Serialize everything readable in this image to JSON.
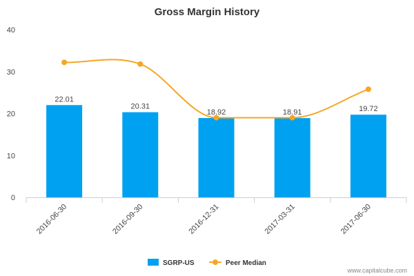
{
  "chart_data": {
    "type": "bar",
    "title": "Gross Margin History",
    "xlabel": "",
    "ylabel": "",
    "ylim": [
      0,
      40
    ],
    "yticks": [
      "0",
      "10",
      "20",
      "30",
      "40"
    ],
    "categories": [
      "2016-06-30",
      "2016-09-30",
      "2016-12-31",
      "2017-03-31",
      "2017-06-30"
    ],
    "series": [
      {
        "name": "SGRP-US",
        "type": "bar",
        "values": [
          22.01,
          20.31,
          18.92,
          18.91,
          19.72
        ],
        "labels": [
          "22.01",
          "20.31",
          "18.92",
          "18.91",
          "19.72"
        ],
        "color": "#00a1f1"
      },
      {
        "name": "Peer Median",
        "type": "line",
        "values": [
          32.2,
          31.8,
          19.0,
          19.0,
          25.8
        ],
        "color": "#f5a623"
      }
    ],
    "grid": false,
    "legend": "bottom-center"
  },
  "credit": "www.capitalcube.com"
}
